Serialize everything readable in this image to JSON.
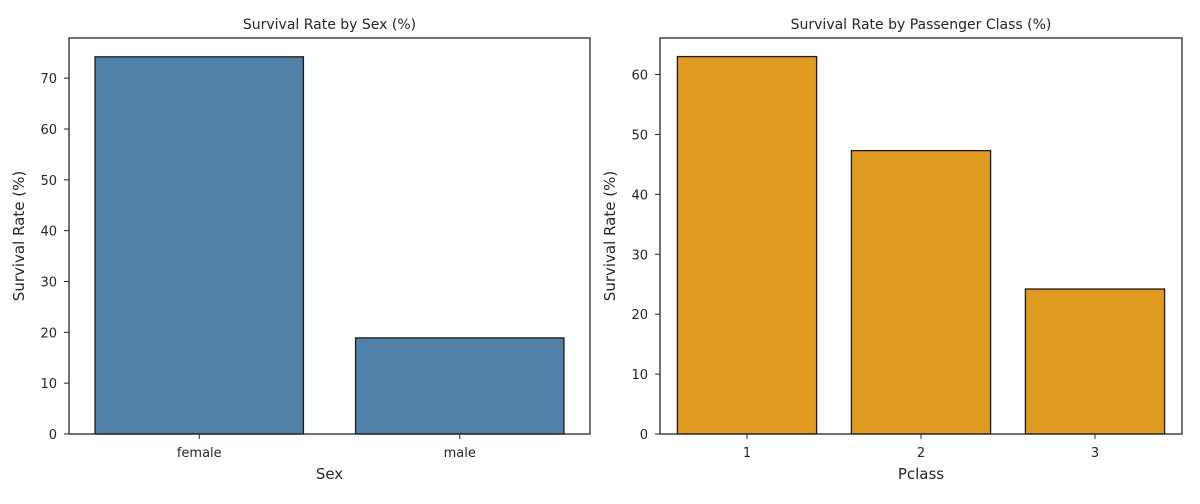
{
  "chart_data": [
    {
      "type": "bar",
      "title": "Survival Rate by Sex (%)",
      "xlabel": "Sex",
      "ylabel": "Survival Rate (%)",
      "categories": [
        "female",
        "male"
      ],
      "values": [
        74.2,
        18.9
      ],
      "ylim": [
        0,
        77.9
      ],
      "yticks": [
        0,
        10,
        20,
        30,
        40,
        50,
        60,
        70
      ],
      "bar_color": "#4f81a9",
      "edge_color": "#1a1a1a",
      "grid": false,
      "legend": false
    },
    {
      "type": "bar",
      "title": "Survival Rate by Passenger Class (%)",
      "xlabel": "Pclass",
      "ylabel": "Survival Rate (%)",
      "categories": [
        "1",
        "2",
        "3"
      ],
      "values": [
        63.0,
        47.3,
        24.2
      ],
      "ylim": [
        0,
        66.1
      ],
      "yticks": [
        0,
        10,
        20,
        30,
        40,
        50,
        60
      ],
      "bar_color": "#df9b20",
      "edge_color": "#1a1a1a",
      "grid": false,
      "legend": false
    }
  ]
}
